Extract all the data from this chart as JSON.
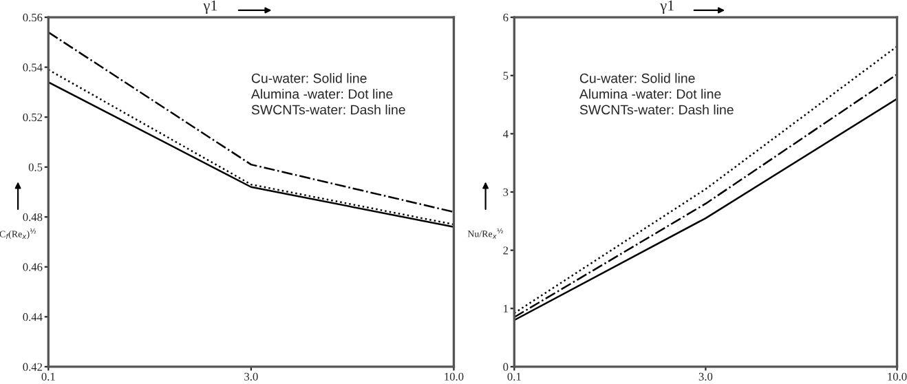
{
  "chart_data": [
    {
      "type": "line",
      "xlabel": "γ1",
      "ylabel": "C$_{f}$(Re$_{x}$)$^{½}$",
      "categories": [
        "0.1",
        "3.0",
        "10.0"
      ],
      "series": [
        {
          "color": "#000000",
          "line_style": "solid",
          "values": [
            0.534,
            0.492,
            0.476
          ]
        },
        {
          "color": "#000000",
          "line_style": "dotted",
          "values": [
            0.539,
            0.493,
            0.477
          ]
        },
        {
          "color": "#000000",
          "line_style": "dashed",
          "values": [
            0.554,
            0.501,
            0.482
          ]
        }
      ],
      "ylim": [
        0.42,
        0.56
      ],
      "yticks": [
        0.42,
        0.44,
        0.46,
        0.48,
        {
          "value": 0.5,
          "label": "0.5"
        },
        0.52,
        0.54,
        0.56
      ],
      "annotations": [
        "Cu-water: Solid line",
        "Alumina -water: Dot line",
        "SWCNTs-water: Dash line"
      ],
      "grid": false,
      "legend": false
    },
    {
      "type": "line",
      "xlabel": "γ1",
      "ylabel": "Nu/Re$_{x}$$^{½}$",
      "categories": [
        "0.1",
        "3.0",
        "10.0"
      ],
      "series": [
        {
          "color": "#000000",
          "line_style": "solid",
          "values": [
            0.8,
            2.55,
            4.6
          ]
        },
        {
          "color": "#000000",
          "line_style": "dotted",
          "values": [
            0.92,
            3.05,
            5.5
          ]
        },
        {
          "color": "#000000",
          "line_style": "dashed",
          "values": [
            0.85,
            2.8,
            5.02
          ]
        }
      ],
      "ylim": [
        0,
        6
      ],
      "yticks": [
        0,
        1,
        2,
        3,
        4,
        5,
        6
      ],
      "annotations": [
        "Cu-water: Solid line",
        "Alumina -water: Dot line",
        "SWCNTs-water: Dash line"
      ],
      "grid": false,
      "legend": false
    }
  ]
}
